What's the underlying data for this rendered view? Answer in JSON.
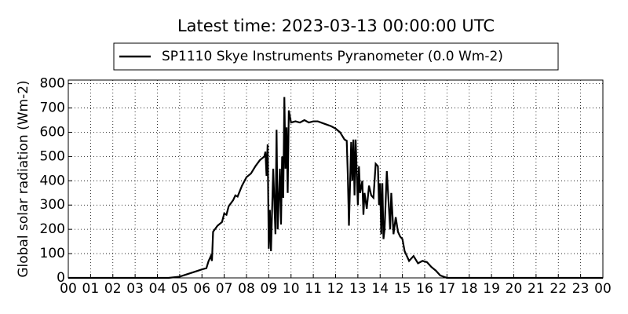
{
  "chart_data": {
    "type": "line",
    "title": "Latest time: 2023-03-13 00:00:00 UTC",
    "y_label": "Global solar radiation (Wm-2)",
    "series": [
      {
        "name": "SP1110 Skye Instruments Pyranometer (0.0 Wm-2)",
        "color": "#000000",
        "x": [
          0,
          4.5,
          5,
          5.5,
          6,
          6.2,
          6.3,
          6.4,
          6.45,
          6.5,
          6.7,
          6.9,
          7.0,
          7.1,
          7.2,
          7.4,
          7.5,
          7.6,
          7.8,
          8.0,
          8.2,
          8.4,
          8.6,
          8.8,
          8.85,
          8.9,
          8.95,
          9.0,
          9.05,
          9.1,
          9.2,
          9.3,
          9.35,
          9.4,
          9.5,
          9.55,
          9.6,
          9.65,
          9.7,
          9.75,
          9.8,
          9.85,
          9.9,
          10.0,
          10.2,
          10.4,
          10.6,
          10.8,
          11.0,
          11.2,
          11.5,
          11.8,
          12.0,
          12.2,
          12.4,
          12.5,
          12.55,
          12.6,
          12.7,
          12.75,
          12.8,
          12.85,
          12.9,
          13.0,
          13.05,
          13.1,
          13.2,
          13.25,
          13.3,
          13.4,
          13.5,
          13.6,
          13.7,
          13.8,
          13.9,
          13.95,
          14.0,
          14.05,
          14.1,
          14.15,
          14.2,
          14.3,
          14.4,
          14.45,
          14.5,
          14.6,
          14.7,
          14.8,
          14.9,
          15.0,
          15.1,
          15.3,
          15.5,
          15.7,
          15.9,
          16.1,
          16.3,
          16.5,
          16.7,
          17.0,
          24
        ],
        "values": [
          0,
          0,
          5,
          20,
          35,
          40,
          70,
          90,
          70,
          190,
          215,
          230,
          265,
          260,
          295,
          320,
          340,
          335,
          380,
          415,
          430,
          460,
          485,
          500,
          520,
          420,
          550,
          120,
          280,
          110,
          450,
          180,
          610,
          200,
          450,
          220,
          500,
          330,
          745,
          450,
          620,
          350,
          690,
          640,
          645,
          640,
          650,
          640,
          645,
          645,
          635,
          625,
          615,
          600,
          570,
          565,
          420,
          215,
          560,
          400,
          570,
          340,
          570,
          300,
          460,
          350,
          400,
          260,
          350,
          285,
          380,
          340,
          330,
          470,
          460,
          300,
          390,
          180,
          390,
          160,
          200,
          440,
          280,
          200,
          350,
          180,
          250,
          190,
          170,
          160,
          110,
          70,
          90,
          60,
          70,
          65,
          45,
          30,
          10,
          0,
          0
        ]
      }
    ],
    "xlim": [
      0,
      24
    ],
    "xticks": [
      {
        "value": 0,
        "label": "00"
      },
      {
        "value": 1,
        "label": "01"
      },
      {
        "value": 2,
        "label": "02"
      },
      {
        "value": 3,
        "label": "03"
      },
      {
        "value": 4,
        "label": "04"
      },
      {
        "value": 5,
        "label": "05"
      },
      {
        "value": 6,
        "label": "06"
      },
      {
        "value": 7,
        "label": "07"
      },
      {
        "value": 8,
        "label": "08"
      },
      {
        "value": 9,
        "label": "09"
      },
      10,
      11,
      12,
      13,
      14,
      15,
      16,
      17,
      18,
      19,
      20,
      21,
      22,
      23,
      {
        "value": 24,
        "label": "00"
      }
    ],
    "ylim": [
      0,
      815
    ],
    "yticks": [
      0,
      100,
      200,
      300,
      400,
      500,
      600,
      700,
      800
    ],
    "grid": true
  }
}
